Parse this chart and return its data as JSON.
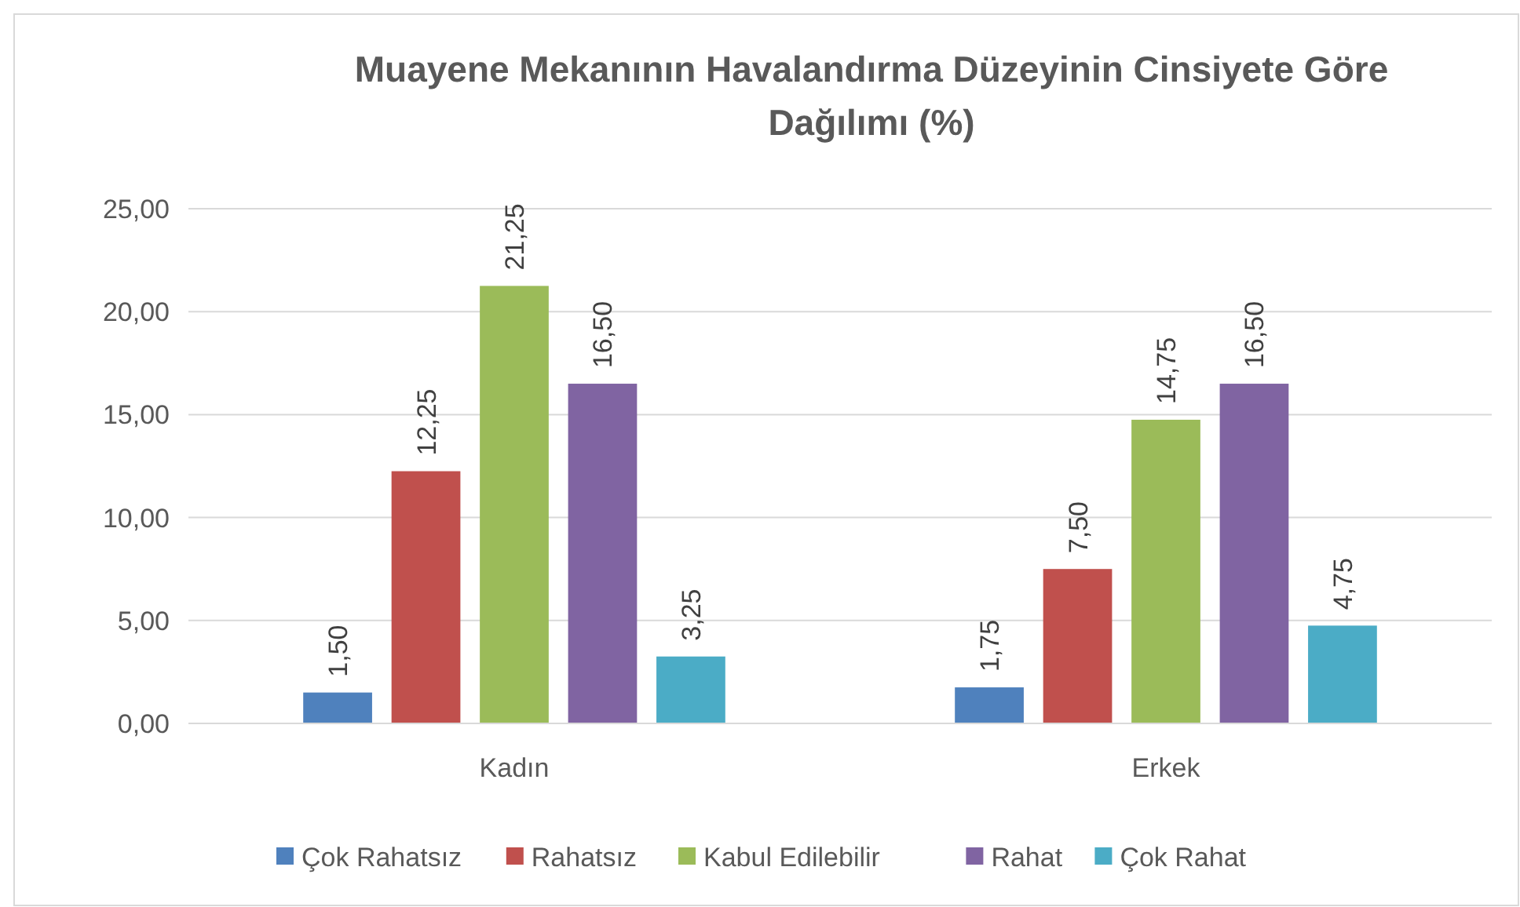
{
  "chart_data": {
    "type": "bar",
    "title": "Muayene Mekanının Havalandırma Düzeyinin  Cinsiyete Göre Dağılımı  (%)",
    "categories": [
      "Kadın",
      "Erkek"
    ],
    "series": [
      {
        "name": "Çok Rahatsız",
        "color": "#4f81bd",
        "values": [
          1.5,
          1.75
        ],
        "value_labels": [
          "1,50",
          "1,75"
        ]
      },
      {
        "name": "Rahatsız",
        "color": "#c0504d",
        "values": [
          12.25,
          7.5
        ],
        "value_labels": [
          "12,25",
          "7,50"
        ]
      },
      {
        "name": "Kabul Edilebilir",
        "color": "#9bbb59",
        "values": [
          21.25,
          14.75
        ],
        "value_labels": [
          "21,25",
          "14,75"
        ]
      },
      {
        "name": "Rahat",
        "color": "#8064a2",
        "values": [
          16.5,
          16.5
        ],
        "value_labels": [
          "16,50",
          "16,50"
        ]
      },
      {
        "name": "Çok Rahat",
        "color": "#4bacc6",
        "values": [
          3.25,
          4.75
        ],
        "value_labels": [
          "3,25",
          "4,75"
        ]
      }
    ],
    "ylim": [
      0,
      25
    ],
    "yticks": [
      {
        "value": 0,
        "label": "0,00"
      },
      {
        "value": 5,
        "label": "5,00"
      },
      {
        "value": 10,
        "label": "10,00"
      },
      {
        "value": 15,
        "label": "15,00"
      },
      {
        "value": 20,
        "label": "20,00"
      },
      {
        "value": 25,
        "label": "25,00"
      }
    ],
    "grid": "y",
    "legend": "bottom"
  }
}
